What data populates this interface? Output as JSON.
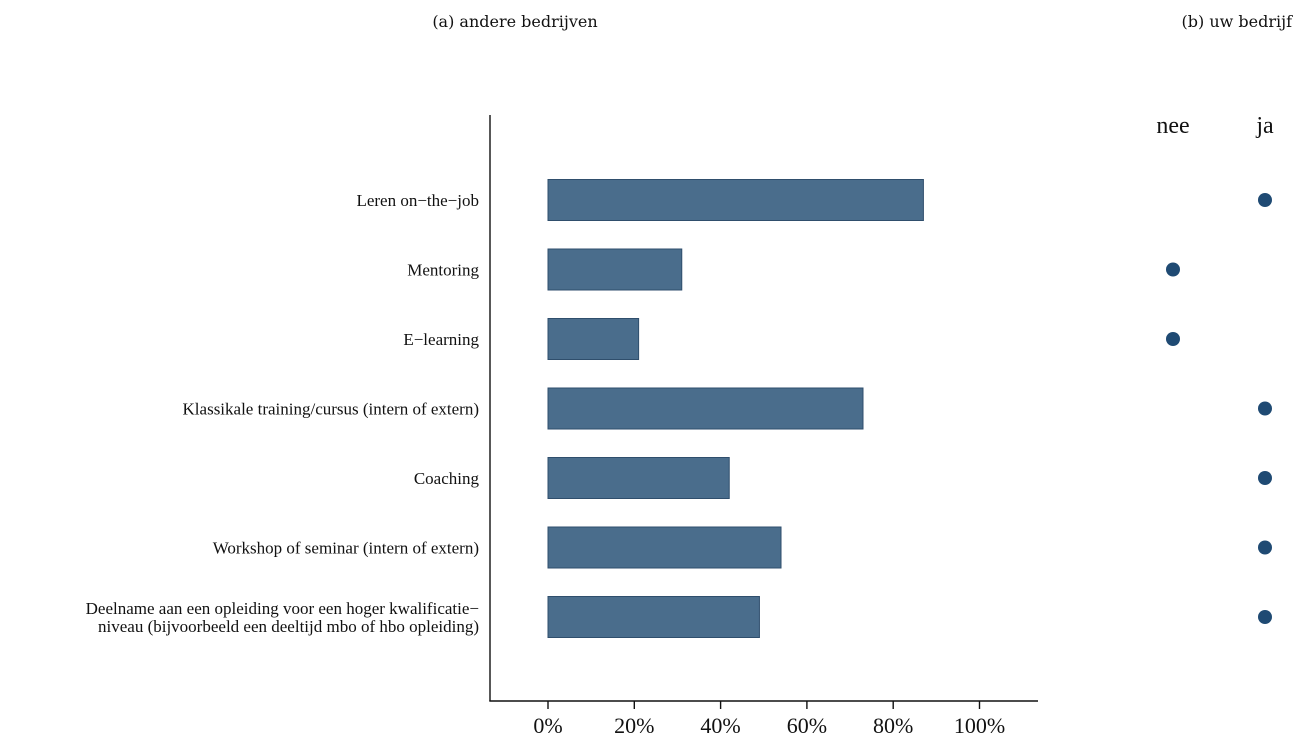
{
  "colors": {
    "bar": "#4a6d8c",
    "dot": "#1f4a73"
  },
  "chart_data": [
    {
      "type": "bar",
      "orientation": "horizontal",
      "title": "(a) andere bedrijven",
      "categories": [
        [
          "Leren on−the−job"
        ],
        [
          "Mentoring"
        ],
        [
          "E−learning"
        ],
        [
          "Klassikale training/cursus (intern of extern)"
        ],
        [
          "Coaching"
        ],
        [
          "Workshop of seminar (intern of extern)"
        ],
        [
          "Deelname aan een opleiding voor een hoger kwalificatie−",
          "niveau (bijvoorbeeld een deeltijd mbo of hbo opleiding)"
        ]
      ],
      "values": [
        87,
        31,
        21,
        73,
        42,
        54,
        49
      ],
      "xlim": [
        0,
        100
      ],
      "xticks": [
        0,
        20,
        40,
        60,
        80,
        100
      ],
      "xtick_labels": [
        "0%",
        "20%",
        "40%",
        "60%",
        "80%",
        "100%"
      ],
      "grid": false
    },
    {
      "type": "scatter",
      "title": "(b) uw bedrijf",
      "x_categories": [
        "nee",
        "ja"
      ],
      "values": [
        "ja",
        "nee",
        "nee",
        "ja",
        "ja",
        "ja",
        "ja"
      ]
    }
  ]
}
